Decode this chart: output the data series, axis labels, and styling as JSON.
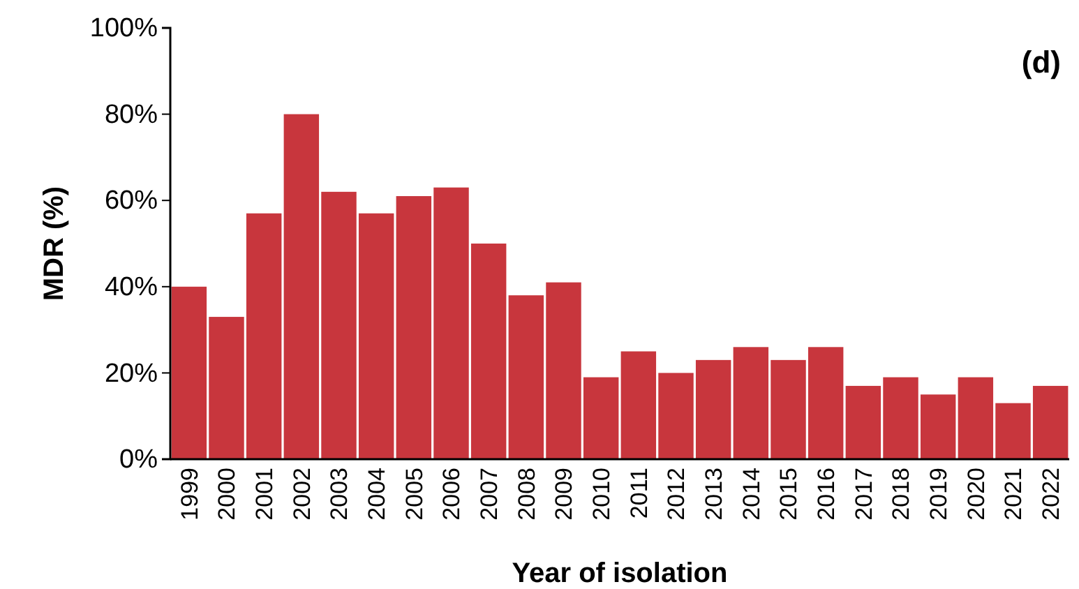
{
  "chart_data": {
    "type": "bar",
    "xlabel": "Year of isolation",
    "ylabel": "MDR (%)",
    "annotations": [
      "(d)"
    ],
    "categories": [
      "1999",
      "2000",
      "2001",
      "2002",
      "2003",
      "2004",
      "2005",
      "2006",
      "2007",
      "2008",
      "2009",
      "2010",
      "2011",
      "2012",
      "2013",
      "2014",
      "2015",
      "2016",
      "2017",
      "2018",
      "2019",
      "2020",
      "2021",
      "2022"
    ],
    "values": [
      40,
      33,
      57,
      80,
      62,
      57,
      61,
      63,
      50,
      38,
      41,
      19,
      25,
      20,
      23,
      26,
      23,
      26,
      17,
      19,
      15,
      19,
      13,
      17
    ],
    "color": "#c8363d",
    "ylim": [
      0,
      100
    ],
    "yticks": [
      {
        "value": 0,
        "label": "0%"
      },
      {
        "value": 20,
        "label": "20%"
      },
      {
        "value": 40,
        "label": "40%"
      },
      {
        "value": 60,
        "label": "60%"
      },
      {
        "value": 80,
        "label": "80%"
      },
      {
        "value": 100,
        "label": "100%"
      }
    ],
    "grid": false
  }
}
